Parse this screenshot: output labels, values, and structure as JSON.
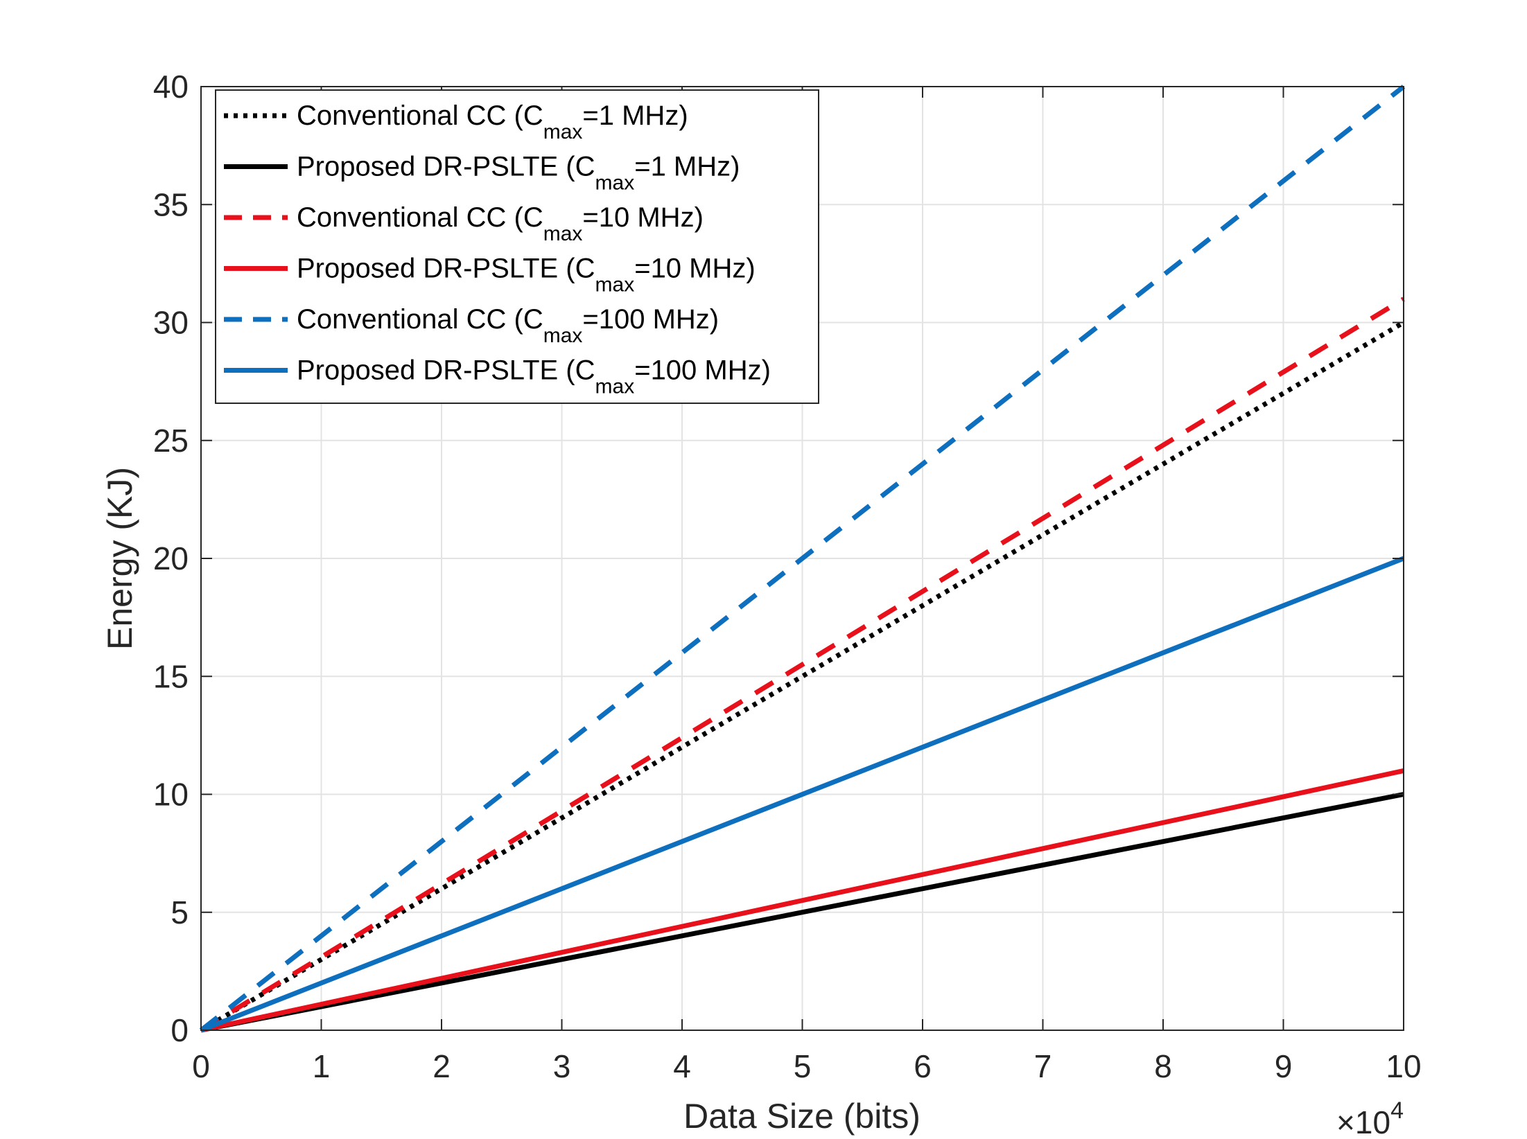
{
  "chart_data": {
    "type": "line",
    "title": "",
    "xlabel": "Data Size (bits)",
    "ylabel": "Energy (KJ)",
    "x_multiplier": {
      "base": "×10",
      "exponent": "4"
    },
    "xlim": [
      0,
      10
    ],
    "ylim": [
      0,
      40
    ],
    "xticks": [
      0,
      1,
      2,
      3,
      4,
      5,
      6,
      7,
      8,
      9,
      10
    ],
    "yticks": [
      0,
      5,
      10,
      15,
      20,
      25,
      30,
      35,
      40
    ],
    "xtick_labels": [
      "0",
      "1",
      "2",
      "3",
      "4",
      "5",
      "6",
      "7",
      "8",
      "9",
      "10"
    ],
    "ytick_labels": [
      "0",
      "5",
      "10",
      "15",
      "20",
      "25",
      "30",
      "35",
      "40"
    ],
    "grid": true,
    "legend_position": "top-left",
    "series": [
      {
        "name": "Conventional CC (Cmax=1 MHz)",
        "legend_main": "Conventional CC (C",
        "legend_sub": "max",
        "legend_rest": "=1 MHz)",
        "color": "#000000",
        "style": "dotted",
        "x": [
          0,
          10
        ],
        "y": [
          0,
          30
        ]
      },
      {
        "name": "Proposed DR-PSLTE (Cmax=1 MHz)",
        "legend_main": "Proposed DR-PSLTE (C",
        "legend_sub": "max",
        "legend_rest": "=1 MHz)",
        "color": "#000000",
        "style": "solid",
        "x": [
          0,
          10
        ],
        "y": [
          0,
          10
        ]
      },
      {
        "name": "Conventional CC (Cmax=10 MHz)",
        "legend_main": "Conventional CC (C",
        "legend_sub": "max",
        "legend_rest": "=10 MHz)",
        "color": "#e8111b",
        "style": "dashed",
        "x": [
          0,
          10
        ],
        "y": [
          0,
          31
        ]
      },
      {
        "name": "Proposed DR-PSLTE (Cmax=10 MHz)",
        "legend_main": "Proposed DR-PSLTE (C",
        "legend_sub": "max",
        "legend_rest": "=10 MHz)",
        "color": "#e8111b",
        "style": "solid",
        "x": [
          0,
          10
        ],
        "y": [
          0,
          11
        ]
      },
      {
        "name": "Conventional CC (Cmax=100 MHz)",
        "legend_main": "Conventional CC (C",
        "legend_sub": "max",
        "legend_rest": "=100 MHz)",
        "color": "#0d6fbd",
        "style": "dashed",
        "x": [
          0,
          10
        ],
        "y": [
          0,
          40
        ]
      },
      {
        "name": "Proposed DR-PSLTE (Cmax=100 MHz)",
        "legend_main": "Proposed DR-PSLTE (C",
        "legend_sub": "max",
        "legend_rest": "=100 MHz)",
        "color": "#0d6fbd",
        "style": "solid",
        "x": [
          0,
          10
        ],
        "y": [
          0,
          20
        ]
      }
    ]
  }
}
